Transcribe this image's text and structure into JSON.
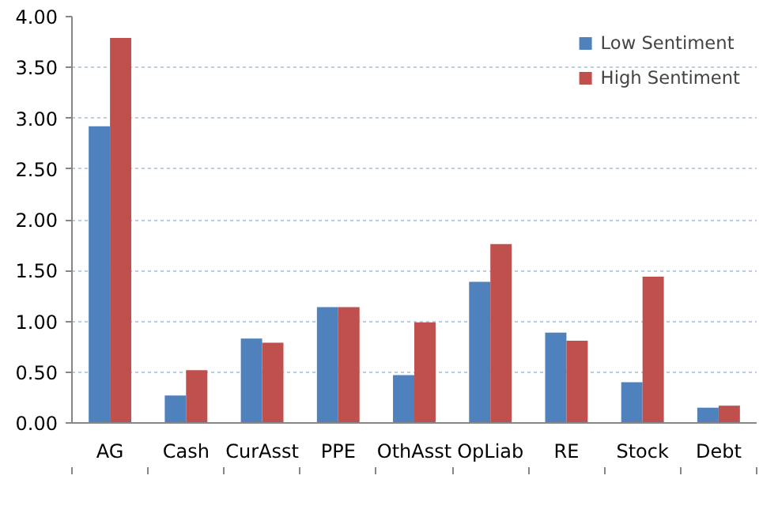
{
  "chart_data": {
    "type": "bar",
    "categories": [
      "AG",
      "Cash",
      "CurAsst",
      "PPE",
      "OthAsst",
      "OpLiab",
      "RE",
      "Stock",
      "Debt"
    ],
    "series": [
      {
        "name": "Low Sentiment",
        "color": "#4f81bd",
        "values": [
          2.92,
          0.27,
          0.83,
          1.14,
          0.47,
          1.39,
          0.89,
          0.4,
          0.15
        ]
      },
      {
        "name": "High Sentiment",
        "color": "#c0504d",
        "values": [
          3.79,
          0.52,
          0.79,
          1.14,
          0.99,
          1.76,
          0.81,
          1.44,
          0.17
        ]
      }
    ],
    "ylim": [
      0,
      4
    ],
    "yticks": [
      {
        "value": 0,
        "label": "0.00"
      },
      {
        "value": 0.5,
        "label": "0.50"
      },
      {
        "value": 1,
        "label": "1.00"
      },
      {
        "value": 1.5,
        "label": "1.50"
      },
      {
        "value": 2,
        "label": "2.00"
      },
      {
        "value": 2.5,
        "label": "2.50"
      },
      {
        "value": 3,
        "label": "3.00"
      },
      {
        "value": 3.5,
        "label": "3.50"
      },
      {
        "value": 4,
        "label": "4.00"
      }
    ],
    "grid": "y",
    "legend": "top right"
  }
}
